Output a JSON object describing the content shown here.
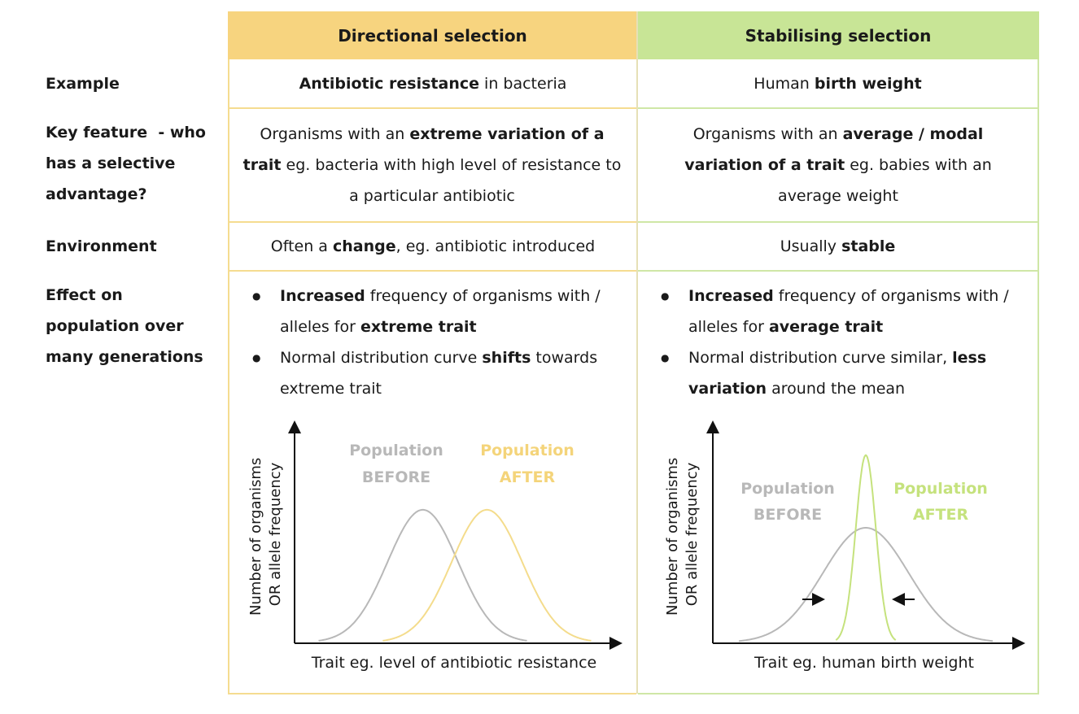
{
  "colors": {
    "yellow_header": "#f7d47f",
    "green_header": "#c8e596",
    "yellow_border": "#f5dc90",
    "green_border": "#cfe7a6",
    "before_curve": "#b8b8b8",
    "after_yellow": "#f4dc8c",
    "after_green": "#c5e27d"
  },
  "headers": {
    "directional": "Directional selection",
    "stabilising": "Stabilising selection"
  },
  "row_labels": {
    "example": "Example",
    "key_feature": [
      "Key feature  - who",
      "has a selective",
      "advantage?"
    ],
    "environment": "Environment",
    "effect": [
      "Effect on",
      "population over",
      "many generations"
    ]
  },
  "example": {
    "dir_bold": "Antibiotic resistance",
    "dir_rest": " in bacteria",
    "stab_pre": "Human ",
    "stab_bold": "birth weight"
  },
  "key_feature": {
    "dir_pre": "Organisms with an ",
    "dir_bold": "extreme variation of a trait",
    "dir_rest": " eg. bacteria with high level of resistance to a particular antibiotic",
    "stab_pre": "Organisms with an ",
    "stab_bold": "average / modal variation of a trait",
    "stab_rest": " eg. babies with an average weight"
  },
  "environment": {
    "dir_pre": "Often a ",
    "dir_bold": "change",
    "dir_rest": ", eg. antibiotic introduced",
    "stab_pre": "Usually ",
    "stab_bold": "stable"
  },
  "effect": {
    "dir_b1_bold": "Increased",
    "dir_b1_rest": " frequency of organisms with / alleles for ",
    "dir_b1_bold2": "extreme trait",
    "dir_b2_pre": "Normal distribution curve ",
    "dir_b2_bold": "shifts",
    "dir_b2_rest": " towards extreme trait",
    "stab_b1_bold": "Increased",
    "stab_b1_rest": " frequency of organisms with / alleles for ",
    "stab_b1_bold2": "average trait",
    "stab_b2_pre": "Normal distribution curve similar, ",
    "stab_b2_bold": "less variation",
    "stab_b2_rest": " around the mean"
  },
  "chart_data": [
    {
      "type": "line",
      "title": "",
      "ylabel": "Number of organisms OR allele frequency",
      "xlabel": "Trait eg. level of antibiotic resistance",
      "series": [
        {
          "name": "Population BEFORE",
          "label_lines": [
            "Population",
            "BEFORE"
          ],
          "mean": 40,
          "sd": 11,
          "peak": 70
        },
        {
          "name": "Population AFTER",
          "label_lines": [
            "Population",
            "AFTER"
          ],
          "mean": 60,
          "sd": 11,
          "peak": 70
        }
      ],
      "xlim": [
        0,
        100
      ],
      "ylim": [
        0,
        100
      ]
    },
    {
      "type": "line",
      "title": "",
      "ylabel": "Number of organisms OR allele frequency",
      "xlabel": "Trait eg. human birth weight",
      "series": [
        {
          "name": "Population BEFORE",
          "label_lines": [
            "Population",
            "BEFORE"
          ],
          "mean": 50,
          "sd": 14,
          "peak": 60
        },
        {
          "name": "Population AFTER",
          "label_lines": [
            "Population",
            "AFTER"
          ],
          "mean": 50,
          "sd": 3.3,
          "peak": 98
        }
      ],
      "xlim": [
        0,
        100
      ],
      "ylim": [
        0,
        100
      ]
    }
  ]
}
